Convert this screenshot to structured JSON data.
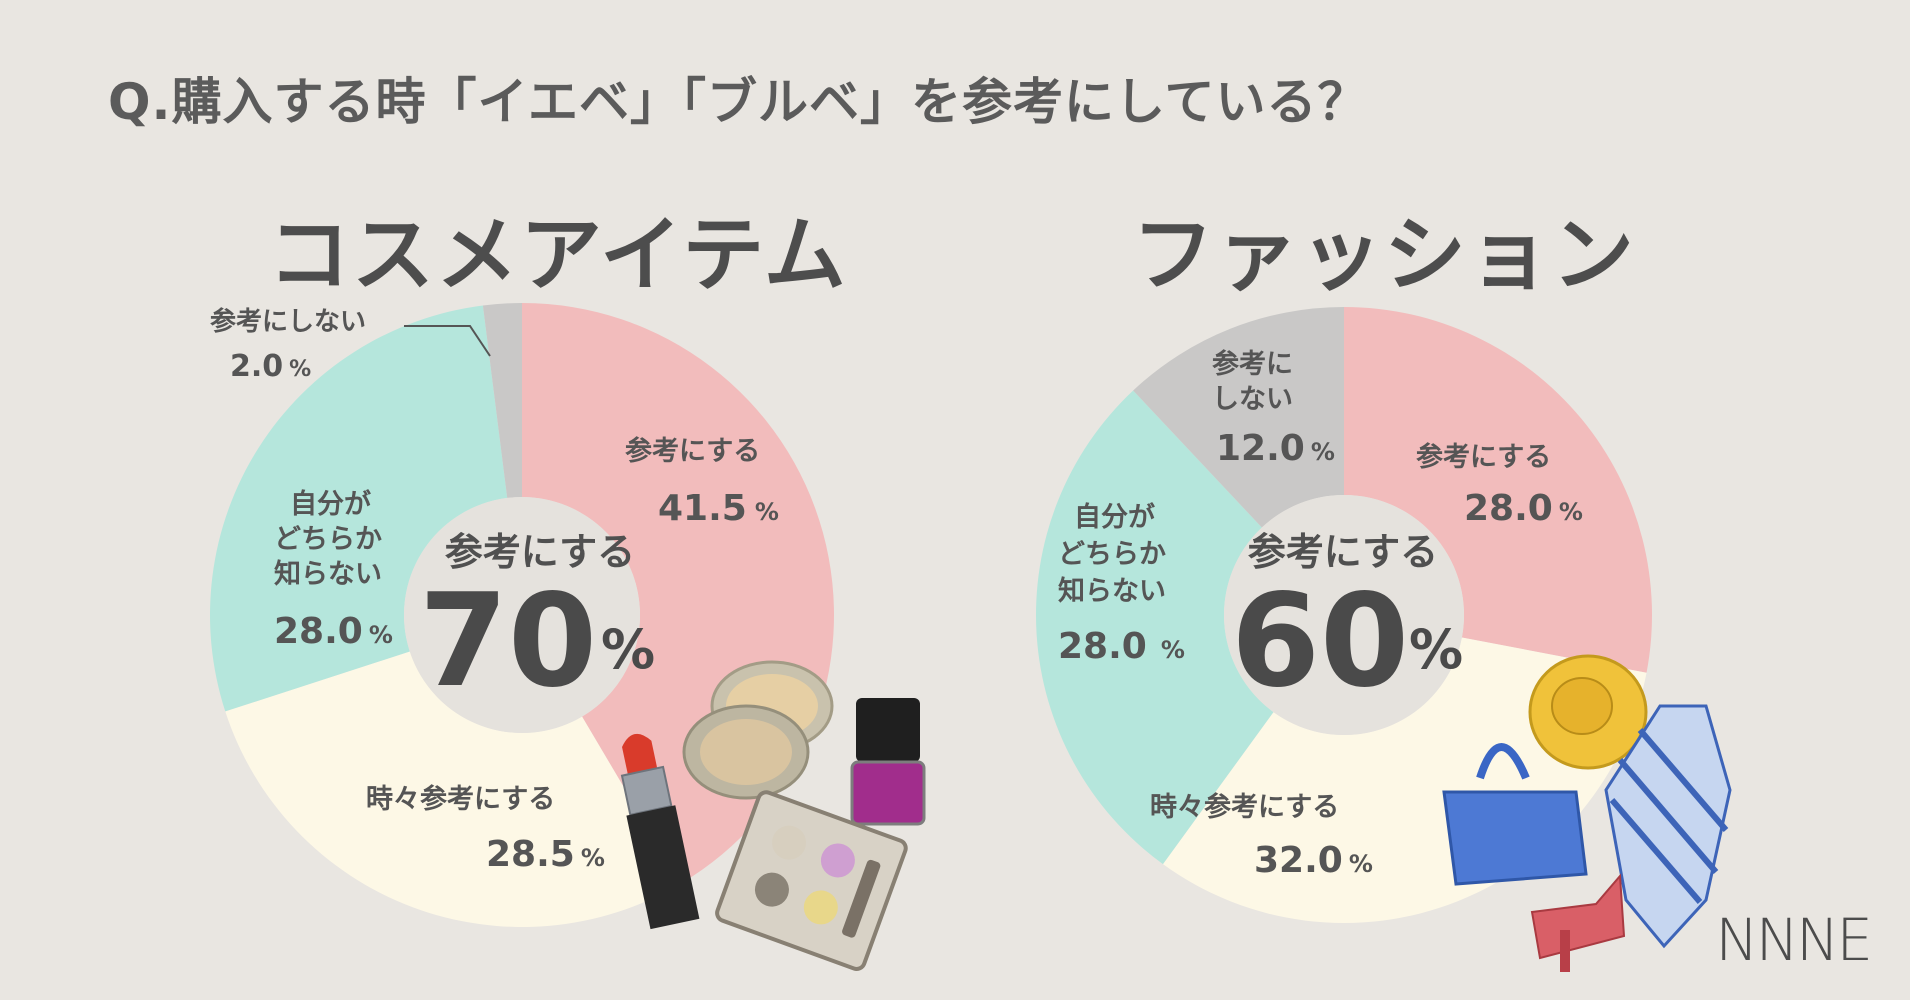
{
  "question": "Q.購入する時「イエベ」「ブルベ」を参考にしている？",
  "logo_text": "NNNE",
  "colors": {
    "pink": "#f2bcbc",
    "cream": "#fdf8e6",
    "mint": "#b5e6dc",
    "gray": "#c9c8c7",
    "center": "#e5e2dd"
  },
  "chart_data": [
    {
      "type": "pie",
      "title": "コスメアイテム",
      "center_label": "参考にする",
      "center_value": "70",
      "center_unit": "%",
      "slices": [
        {
          "label": "参考にする",
          "value": 41.5,
          "value_text": "41.5",
          "color": "#f2bcbc"
        },
        {
          "label": "時々参考にする",
          "value": 28.5,
          "value_text": "28.5",
          "color": "#fdf8e6"
        },
        {
          "label": "自分がどちらか知らない",
          "value": 28.0,
          "value_text": "28.0",
          "color": "#b5e6dc"
        },
        {
          "label": "参考にしない",
          "value": 2.0,
          "value_text": "2.0",
          "color": "#c9c8c7"
        }
      ]
    },
    {
      "type": "pie",
      "title": "ファッション",
      "center_label": "参考にする",
      "center_value": "60",
      "center_unit": "%",
      "slices": [
        {
          "label": "参考にする",
          "value": 28.0,
          "value_text": "28.0",
          "color": "#f2bcbc"
        },
        {
          "label": "時々参考にする",
          "value": 32.0,
          "value_text": "32.0",
          "color": "#fdf8e6"
        },
        {
          "label": "自分がどちらか知らない",
          "value": 28.0,
          "value_text": "28.0",
          "color": "#b5e6dc"
        },
        {
          "label": "参考にしない",
          "value": 12.0,
          "value_text": "12.0",
          "color": "#c9c8c7"
        }
      ]
    }
  ],
  "cosme_labels": {
    "ref": "参考にする",
    "ref_pct": "41.5",
    "sometimes": "時々参考にする",
    "sometimes_pct": "28.5",
    "unknown_1": "自分が",
    "unknown_2": "どちらか",
    "unknown_3": "知らない",
    "unknown_pct": "28.0",
    "not_ref": "参考にしない",
    "not_ref_pct": "2.0",
    "pct_unit": "%"
  },
  "fashion_labels": {
    "ref": "参考にする",
    "ref_pct": "28.0",
    "sometimes": "時々参考にする",
    "sometimes_pct": "32.0",
    "unknown_1": "自分が",
    "unknown_2": "どちらか",
    "unknown_3": "知らない",
    "unknown_pct": "28.0",
    "not_ref_1": "参考に",
    "not_ref_2": "しない",
    "not_ref_pct": "12.0",
    "pct_unit": "%"
  }
}
